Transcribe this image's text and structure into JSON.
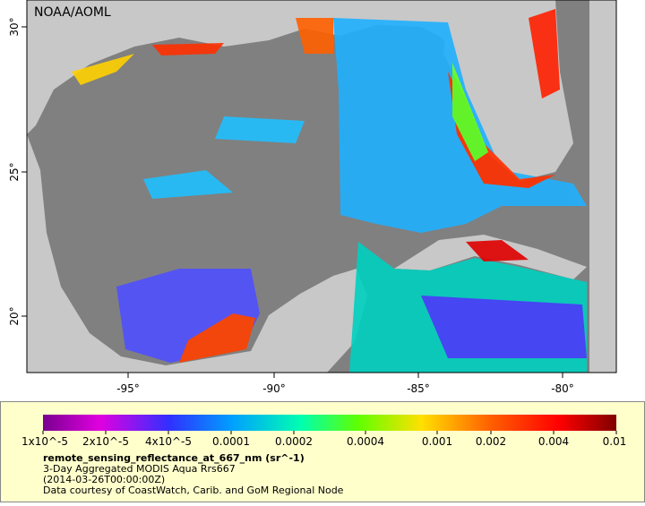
{
  "map": {
    "label": "NOAA/AOML",
    "lat_ticks": [
      "30°",
      "25°",
      "20°"
    ],
    "lon_ticks": [
      "-95°",
      "-90°",
      "-85°",
      "-80°"
    ]
  },
  "colorbar": {
    "ticks": [
      "1x10^-5",
      "2x10^-5",
      "4x10^-5",
      "0.0001",
      "0.0002",
      "0.0004",
      "0.001",
      "0.002",
      "0.004",
      "0.01"
    ],
    "variable": "remote_sensing_reflectance_at_667_nm (sr^-1)",
    "lines": [
      "3-Day Aggregated MODIS Aqua Rrs667",
      "(2014-03-26T00:00:00Z)",
      "Data courtesy of CoastWatch, Carib. and GoM Regional Node"
    ]
  }
}
